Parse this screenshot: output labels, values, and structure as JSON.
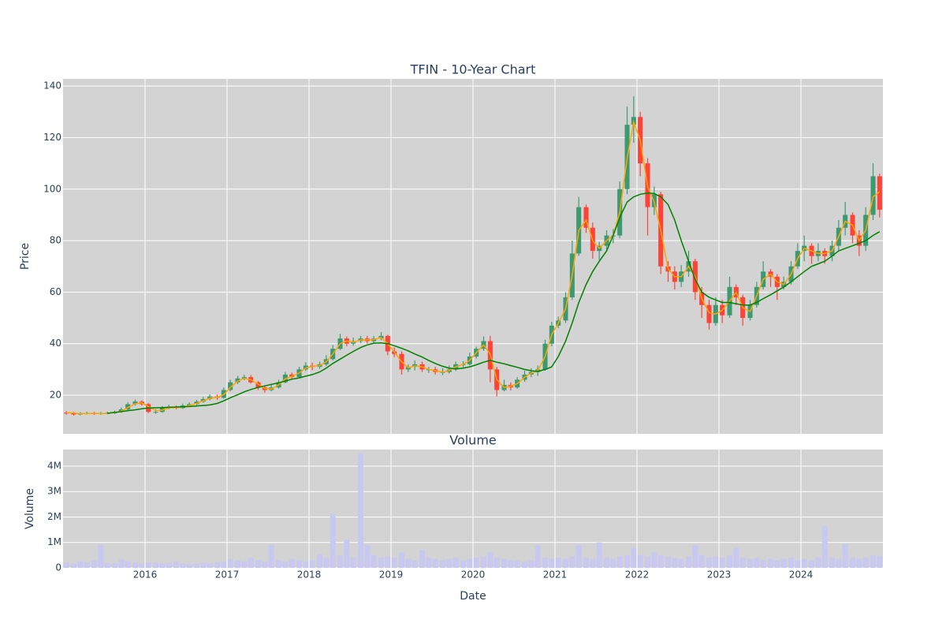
{
  "chart_data": [
    {
      "type": "candlestick",
      "title": "TFIN - 10-Year Chart",
      "ylabel": "Price",
      "x": [
        2015.04,
        2015.13,
        2015.21,
        2015.29,
        2015.38,
        2015.46,
        2015.54,
        2015.63,
        2015.71,
        2015.79,
        2015.88,
        2015.96,
        2016.04,
        2016.13,
        2016.21,
        2016.29,
        2016.38,
        2016.46,
        2016.54,
        2016.63,
        2016.71,
        2016.79,
        2016.88,
        2016.96,
        2017.04,
        2017.13,
        2017.21,
        2017.29,
        2017.38,
        2017.46,
        2017.54,
        2017.63,
        2017.71,
        2017.79,
        2017.88,
        2017.96,
        2018.04,
        2018.13,
        2018.21,
        2018.29,
        2018.38,
        2018.46,
        2018.54,
        2018.63,
        2018.71,
        2018.79,
        2018.88,
        2018.96,
        2019.04,
        2019.13,
        2019.21,
        2019.29,
        2019.38,
        2019.46,
        2019.54,
        2019.63,
        2019.71,
        2019.79,
        2019.88,
        2019.96,
        2020.04,
        2020.13,
        2020.21,
        2020.29,
        2020.38,
        2020.46,
        2020.54,
        2020.63,
        2020.71,
        2020.79,
        2020.88,
        2020.96,
        2021.04,
        2021.13,
        2021.21,
        2021.29,
        2021.38,
        2021.46,
        2021.54,
        2021.63,
        2021.71,
        2021.79,
        2021.88,
        2021.96,
        2022.04,
        2022.13,
        2022.21,
        2022.29,
        2022.38,
        2022.46,
        2022.54,
        2022.63,
        2022.71,
        2022.79,
        2022.88,
        2022.96,
        2023.04,
        2023.13,
        2023.21,
        2023.29,
        2023.38,
        2023.46,
        2023.54,
        2023.63,
        2023.71,
        2023.79,
        2023.88,
        2023.96,
        2024.04,
        2024.13,
        2024.21,
        2024.29,
        2024.38,
        2024.46,
        2024.54,
        2024.63,
        2024.71,
        2024.79,
        2024.88,
        2024.96
      ],
      "open": [
        13.2,
        13,
        12.5,
        13,
        13,
        12.8,
        13,
        13,
        13.5,
        14.5,
        16.5,
        17.5,
        16.5,
        13.5,
        13.5,
        15,
        15.5,
        15,
        16,
        16.5,
        17.5,
        18.5,
        19.5,
        19,
        22,
        25,
        26.5,
        27,
        25,
        23,
        22,
        23,
        25,
        28,
        27,
        30,
        31.5,
        31,
        32,
        34,
        38,
        42,
        40,
        41,
        42,
        41,
        42,
        43,
        37,
        36,
        30,
        31,
        32,
        30,
        30,
        29,
        29,
        30,
        32,
        32,
        35,
        38,
        41,
        30,
        22,
        24,
        23,
        26,
        28,
        29,
        30,
        40,
        47,
        49,
        58,
        75,
        93,
        85,
        76,
        78,
        82,
        82,
        100,
        125,
        128,
        110,
        93,
        98,
        70,
        68,
        64,
        68,
        72,
        60,
        55,
        48,
        55,
        51,
        62,
        58,
        50,
        55,
        62,
        68,
        66,
        62,
        64,
        70,
        76,
        78,
        74,
        76,
        74,
        78,
        85,
        90,
        82,
        78,
        90,
        105
      ],
      "high": [
        13.8,
        13.5,
        13.4,
        13.6,
        13.5,
        13.5,
        13.6,
        14,
        15.2,
        17.3,
        18.3,
        18,
        17,
        14.5,
        15.8,
        16.3,
        16,
        16.7,
        17.2,
        18.2,
        19.3,
        20.3,
        20.2,
        23,
        26,
        27.5,
        28,
        27.8,
        25.5,
        23.8,
        24,
        26,
        29,
        28.8,
        31,
        32.8,
        32.6,
        33,
        35.5,
        39.5,
        43.8,
        42.8,
        42.4,
        43,
        43,
        43,
        44.5,
        43.5,
        38.5,
        37,
        32,
        33.5,
        33,
        31,
        31,
        30.5,
        31.5,
        33,
        33.2,
        36.5,
        38.8,
        42.8,
        43,
        31,
        26,
        25,
        27,
        29.5,
        30.5,
        31.5,
        41.5,
        48.5,
        50.5,
        60,
        80,
        97,
        94,
        87,
        79.5,
        84,
        84.5,
        103,
        132,
        136,
        130,
        112,
        101,
        99,
        72,
        70,
        70.5,
        76,
        73,
        62,
        57,
        58,
        57,
        66,
        63,
        59,
        57,
        64,
        72,
        69,
        67,
        66,
        72,
        79,
        82,
        79,
        79,
        77,
        80,
        88,
        95,
        91,
        84,
        93,
        110,
        106
      ],
      "low": [
        12.4,
        12.1,
        12.2,
        12.5,
        12.4,
        12.4,
        12.6,
        12.7,
        13.2,
        14.1,
        16,
        16,
        13,
        12.8,
        13.2,
        14.6,
        14.5,
        14.7,
        15.6,
        16.1,
        17.1,
        18,
        18.2,
        18.6,
        21.5,
        24.3,
        25.8,
        24.5,
        22,
        21,
        21.5,
        22.6,
        24.6,
        26.3,
        26.7,
        29.4,
        29.7,
        30.3,
        31.3,
        33.5,
        37.5,
        39,
        39.2,
        40.2,
        40,
        40.2,
        41.3,
        35.5,
        34.8,
        28,
        29,
        29.6,
        29,
        28.6,
        28,
        27.8,
        28.4,
        29.4,
        30.8,
        31.5,
        34.2,
        37.2,
        25,
        19.5,
        21.5,
        21.8,
        22.5,
        25.2,
        27,
        27.5,
        29.5,
        39,
        46,
        48,
        57,
        74,
        83,
        73,
        72.5,
        76.5,
        79,
        81,
        98,
        118,
        105,
        82,
        90,
        67,
        64,
        61,
        62,
        66,
        57,
        50,
        45.5,
        47,
        48,
        50,
        55,
        47,
        49,
        54,
        61,
        62,
        57,
        61,
        63,
        69,
        72,
        71,
        72,
        71,
        72,
        76,
        82,
        79,
        74,
        76,
        88,
        89
      ],
      "close": [
        13,
        12.5,
        13,
        13,
        12.8,
        13,
        13,
        13.5,
        14.5,
        16.5,
        17.5,
        16.5,
        13.5,
        13.5,
        15,
        15.5,
        15,
        16,
        16.5,
        17.5,
        18.5,
        19.5,
        19,
        22,
        25,
        26.5,
        27,
        25,
        23,
        22,
        23,
        25,
        28,
        27,
        30,
        31.5,
        31,
        32,
        34,
        38,
        42,
        40,
        41,
        42,
        41,
        42,
        43,
        37,
        36,
        30,
        31,
        32,
        30,
        30,
        29,
        29,
        30,
        32,
        32,
        35,
        38,
        41,
        30,
        22,
        24,
        23,
        26,
        28,
        29,
        30,
        40,
        47,
        49,
        58,
        75,
        93,
        85,
        76,
        78,
        82,
        82,
        100,
        125,
        128,
        110,
        93,
        98,
        70,
        68,
        64,
        68,
        72,
        60,
        55,
        48,
        55,
        51,
        62,
        58,
        50,
        55,
        62,
        68,
        66,
        62,
        64,
        70,
        76,
        78,
        74,
        76,
        74,
        78,
        85,
        90,
        82,
        78,
        90,
        105,
        92
      ],
      "increasing_color": "#3d9970",
      "decreasing_color": "#ff4136",
      "lines": [
        {
          "color": "#ffa500",
          "values": [
            13.2,
            13.1,
            12.8,
            12.9,
            13,
            12.9,
            13,
            13.2,
            13.8,
            15.2,
            16.7,
            17,
            15.6,
            14,
            14.2,
            15,
            15.2,
            15.4,
            16,
            16.8,
            17.8,
            18.8,
            19.2,
            20.2,
            23,
            25.5,
            26.5,
            26,
            24.3,
            22.6,
            22.4,
            24,
            26.3,
            27.3,
            28.6,
            30.5,
            31.2,
            31.5,
            33,
            36,
            40,
            41,
            40.6,
            41.4,
            41.5,
            41.6,
            42.4,
            40,
            36.8,
            33,
            30.6,
            31.4,
            31,
            30,
            29.5,
            29,
            29.6,
            31,
            32,
            33.5,
            36.5,
            39.5,
            36,
            26,
            23,
            23.5,
            24.5,
            27,
            28.5,
            29.5,
            35,
            43.5,
            48,
            53.5,
            66.5,
            84,
            88,
            80,
            77,
            80,
            82,
            91,
            112,
            126,
            119,
            101,
            95,
            84,
            69,
            66,
            66,
            70,
            66,
            57.5,
            52,
            51.5,
            53,
            56.5,
            60,
            54,
            52.5,
            58.5,
            65,
            67,
            64,
            63,
            67,
            73,
            77,
            76,
            75,
            75,
            76,
            81.5,
            87.5,
            86,
            80,
            84,
            97,
            99
          ]
        },
        {
          "color": "#008000",
          "values": [
            null,
            null,
            null,
            null,
            null,
            null,
            13,
            13.3,
            13.6,
            14,
            14.3,
            14.7,
            15,
            15.1,
            15.2,
            15.3,
            15.4,
            15.5,
            15.6,
            15.8,
            16,
            16.2,
            16.8,
            17.8,
            19,
            20.2,
            21.3,
            22.2,
            23,
            23.6,
            24.2,
            24.8,
            25.5,
            26.2,
            26.7,
            27.4,
            28,
            29,
            30.5,
            32.3,
            34,
            35.5,
            37,
            38.5,
            39.5,
            40.2,
            40.3,
            40,
            39.2,
            38.2,
            37.2,
            36,
            34.8,
            33.5,
            32.3,
            31.2,
            30.5,
            30.2,
            30.5,
            31,
            31.8,
            32.8,
            33.5,
            32.8,
            32.2,
            31.5,
            30.8,
            30,
            29.5,
            29.2,
            30,
            31,
            35,
            41,
            48,
            56,
            63,
            68,
            72,
            76,
            82,
            89,
            95,
            97,
            98,
            98.5,
            98.3,
            97,
            94,
            88,
            80,
            72,
            65,
            60,
            58,
            57,
            56,
            56,
            55.5,
            55,
            55,
            56,
            57.5,
            59,
            60.5,
            62,
            64,
            66,
            68,
            70,
            71,
            72,
            74,
            76,
            77,
            78,
            79,
            80,
            82,
            83.5
          ]
        }
      ],
      "xlim": [
        2015,
        2025
      ],
      "ylim": [
        5,
        142.8
      ],
      "yticks": [
        20,
        40,
        60,
        80,
        100,
        120,
        140
      ],
      "grid": true
    },
    {
      "type": "bar",
      "title": "Volume",
      "ylabel": "Volume",
      "xlabel": "Date",
      "color": "#c8c8f0",
      "values": [
        200000,
        180000,
        250000,
        220000,
        300000,
        900000,
        200000,
        180000,
        350000,
        250000,
        200000,
        180000,
        220000,
        200000,
        180000,
        200000,
        250000,
        180000,
        150000,
        170000,
        200000,
        180000,
        220000,
        250000,
        350000,
        300000,
        250000,
        400000,
        300000,
        250000,
        900000,
        300000,
        250000,
        350000,
        300000,
        250000,
        300000,
        550000,
        400000,
        2100000,
        500000,
        1100000,
        400000,
        4500000,
        900000,
        500000,
        400000,
        450000,
        400000,
        600000,
        350000,
        300000,
        700000,
        400000,
        350000,
        300000,
        350000,
        400000,
        300000,
        350000,
        400000,
        450000,
        600000,
        400000,
        350000,
        300000,
        300000,
        250000,
        300000,
        900000,
        400000,
        350000,
        400000,
        350000,
        450000,
        900000,
        400000,
        350000,
        1000000,
        400000,
        350000,
        450000,
        500000,
        800000,
        500000,
        450000,
        600000,
        500000,
        450000,
        400000,
        350000,
        450000,
        900000,
        500000,
        400000,
        450000,
        400000,
        500000,
        800000,
        400000,
        350000,
        400000,
        300000,
        350000,
        300000,
        350000,
        400000,
        300000,
        350000,
        300000,
        400000,
        1650000,
        400000,
        350000,
        950000,
        400000,
        350000,
        400000,
        500000,
        450000
      ],
      "xlim": [
        2015,
        2025
      ],
      "xticks": [
        2016,
        2017,
        2018,
        2019,
        2020,
        2021,
        2022,
        2023,
        2024
      ],
      "ylim": [
        0,
        4650000
      ],
      "yticks": [
        0,
        {
          "value": 1000000,
          "label": "1M"
        },
        {
          "value": 2000000,
          "label": "2M"
        },
        {
          "value": 3000000,
          "label": "3M"
        },
        {
          "value": 4000000,
          "label": "4M"
        }
      ],
      "grid": true
    }
  ]
}
